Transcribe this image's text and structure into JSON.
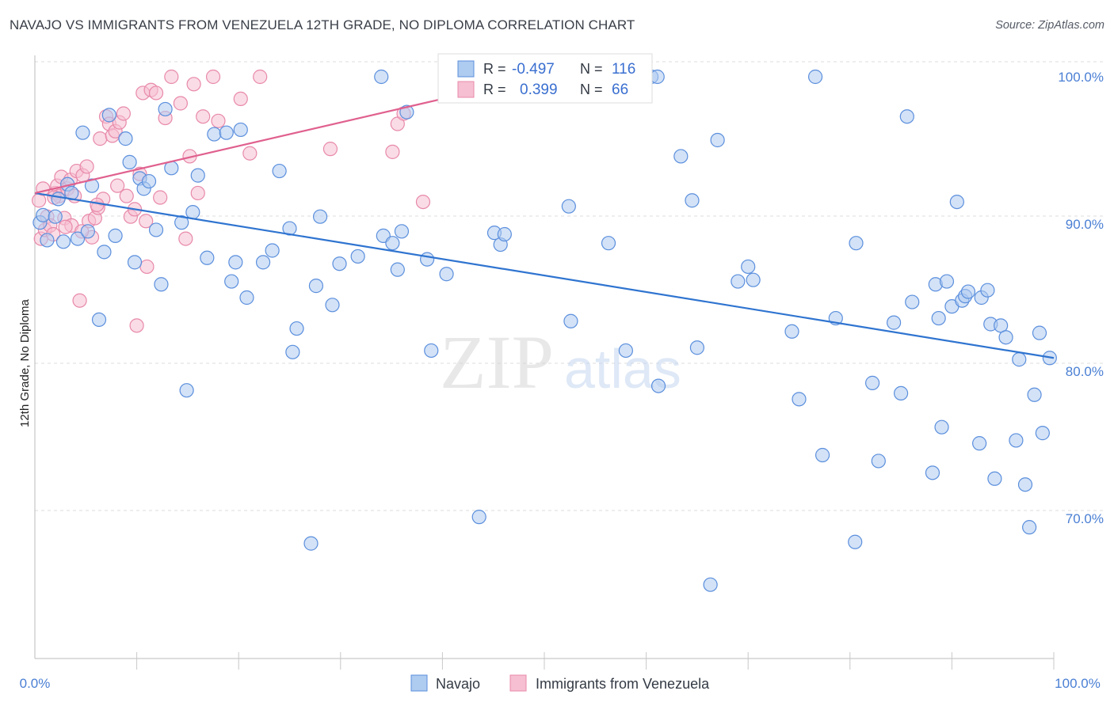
{
  "title": "NAVAJO VS IMMIGRANTS FROM VENEZUELA 12TH GRADE, NO DIPLOMA CORRELATION CHART",
  "source": "Source: ZipAtlas.com",
  "watermark": {
    "zip": "ZIP",
    "atlas": "atlas"
  },
  "colors": {
    "blue_fill": "#aecbf0",
    "blue_stroke": "#5b8fdd",
    "blue_line": "#2f74d0",
    "pink_fill": "#f6bfd2",
    "pink_stroke": "#e889aa",
    "pink_line": "#e0608e",
    "tick_text": "#4a7fd4",
    "grid": "#dcdcdc"
  },
  "legend": {
    "r_label": "R =",
    "n_label": "N =",
    "rows": [
      {
        "series": "Navajo",
        "r": "-0.497",
        "n": "116"
      },
      {
        "series": "Immigrants from Venezuela",
        "r": "0.399",
        "n": "66"
      }
    ]
  },
  "chart_data": {
    "type": "scatter",
    "title": "NAVAJO VS IMMIGRANTS FROM VENEZUELA 12TH GRADE, NO DIPLOMA CORRELATION CHART",
    "xlabel": "",
    "ylabel": "12th Grade, No Diploma",
    "x_ticks": [
      "0.0%",
      "100.0%"
    ],
    "y_ticks": [
      "100.0%",
      "90.0%",
      "80.0%",
      "70.0%"
    ],
    "y_tick_values": [
      100,
      90,
      80,
      70
    ],
    "xlim": [
      0,
      100
    ],
    "ylim": [
      59,
      101
    ],
    "grid": true,
    "legend_position": "top-center",
    "series": [
      {
        "name": "Navajo",
        "trend": [
          [
            0,
            92.1
          ],
          [
            100,
            80.9
          ]
        ],
        "points": [
          [
            0.5,
            90.1
          ],
          [
            0.8,
            90.6
          ],
          [
            1.2,
            88.9
          ],
          [
            2.0,
            90.5
          ],
          [
            2.3,
            91.7
          ],
          [
            2.8,
            88.8
          ],
          [
            3.2,
            92.7
          ],
          [
            3.6,
            92.1
          ],
          [
            4.2,
            89.0
          ],
          [
            4.7,
            96.2
          ],
          [
            5.2,
            89.5
          ],
          [
            5.6,
            92.6
          ],
          [
            6.3,
            83.5
          ],
          [
            6.8,
            88.1
          ],
          [
            7.3,
            97.4
          ],
          [
            7.9,
            89.2
          ],
          [
            8.9,
            95.8
          ],
          [
            9.3,
            94.2
          ],
          [
            9.8,
            87.4
          ],
          [
            10.3,
            93.1
          ],
          [
            10.7,
            92.4
          ],
          [
            11.2,
            92.9
          ],
          [
            11.9,
            89.6
          ],
          [
            12.4,
            85.9
          ],
          [
            12.8,
            97.8
          ],
          [
            13.4,
            93.8
          ],
          [
            14.4,
            90.1
          ],
          [
            14.9,
            78.7
          ],
          [
            15.5,
            90.8
          ],
          [
            16.0,
            93.3
          ],
          [
            16.9,
            87.7
          ],
          [
            17.6,
            96.1
          ],
          [
            18.8,
            96.2
          ],
          [
            19.3,
            86.1
          ],
          [
            19.7,
            87.4
          ],
          [
            20.2,
            96.4
          ],
          [
            20.8,
            85.0
          ],
          [
            22.4,
            87.4
          ],
          [
            23.3,
            88.2
          ],
          [
            24.0,
            93.6
          ],
          [
            25.0,
            89.7
          ],
          [
            25.3,
            81.3
          ],
          [
            25.7,
            82.9
          ],
          [
            27.1,
            68.3
          ],
          [
            27.6,
            85.8
          ],
          [
            28.0,
            90.5
          ],
          [
            29.2,
            84.5
          ],
          [
            29.9,
            87.3
          ],
          [
            31.7,
            87.8
          ],
          [
            34.0,
            100.0
          ],
          [
            34.2,
            89.2
          ],
          [
            35.1,
            88.7
          ],
          [
            35.6,
            86.9
          ],
          [
            36.0,
            89.5
          ],
          [
            36.5,
            97.6
          ],
          [
            38.5,
            87.6
          ],
          [
            38.9,
            81.4
          ],
          [
            40.4,
            86.6
          ],
          [
            43.6,
            70.1
          ],
          [
            45.1,
            89.4
          ],
          [
            45.7,
            88.6
          ],
          [
            46.1,
            89.3
          ],
          [
            52.4,
            91.2
          ],
          [
            52.6,
            83.4
          ],
          [
            52.9,
            100.0
          ],
          [
            56.3,
            88.7
          ],
          [
            58.0,
            81.4
          ],
          [
            60.5,
            100.0
          ],
          [
            61.1,
            100.0
          ],
          [
            61.2,
            79.0
          ],
          [
            63.4,
            94.6
          ],
          [
            64.5,
            91.6
          ],
          [
            65.0,
            81.6
          ],
          [
            66.3,
            65.5
          ],
          [
            67.0,
            95.7
          ],
          [
            69.0,
            86.1
          ],
          [
            70.0,
            87.1
          ],
          [
            70.5,
            86.2
          ],
          [
            74.3,
            82.7
          ],
          [
            75.0,
            78.1
          ],
          [
            76.6,
            100.0
          ],
          [
            77.3,
            74.3
          ],
          [
            78.6,
            83.6
          ],
          [
            80.5,
            68.4
          ],
          [
            80.6,
            88.7
          ],
          [
            82.2,
            79.2
          ],
          [
            82.8,
            73.9
          ],
          [
            84.3,
            83.3
          ],
          [
            85.0,
            78.5
          ],
          [
            85.6,
            97.3
          ],
          [
            86.1,
            84.7
          ],
          [
            88.1,
            73.1
          ],
          [
            88.4,
            85.9
          ],
          [
            88.7,
            83.6
          ],
          [
            89.0,
            76.2
          ],
          [
            89.5,
            86.1
          ],
          [
            90.0,
            84.4
          ],
          [
            90.5,
            91.5
          ],
          [
            91.0,
            84.8
          ],
          [
            91.3,
            85.1
          ],
          [
            91.6,
            85.4
          ],
          [
            92.7,
            75.1
          ],
          [
            92.9,
            85.0
          ],
          [
            93.5,
            85.5
          ],
          [
            93.8,
            83.2
          ],
          [
            94.2,
            72.7
          ],
          [
            94.8,
            83.1
          ],
          [
            95.3,
            82.3
          ],
          [
            96.3,
            75.3
          ],
          [
            96.6,
            80.8
          ],
          [
            97.2,
            72.3
          ],
          [
            97.6,
            69.4
          ],
          [
            98.1,
            78.4
          ],
          [
            98.6,
            82.6
          ],
          [
            98.9,
            75.8
          ],
          [
            99.6,
            80.9
          ]
        ]
      },
      {
        "name": "Immigrants from Venezuela",
        "trend": [
          [
            0,
            92.1
          ],
          [
            40,
            98.5
          ]
        ],
        "points": [
          [
            0.4,
            91.6
          ],
          [
            0.6,
            89.0
          ],
          [
            0.8,
            92.4
          ],
          [
            1.0,
            89.6
          ],
          [
            1.2,
            90.5
          ],
          [
            1.5,
            89.9
          ],
          [
            1.8,
            89.3
          ],
          [
            2.0,
            92.1
          ],
          [
            2.2,
            92.6
          ],
          [
            2.4,
            91.9
          ],
          [
            2.6,
            93.2
          ],
          [
            2.9,
            90.4
          ],
          [
            3.2,
            92.4
          ],
          [
            3.5,
            93.0
          ],
          [
            3.6,
            89.9
          ],
          [
            3.9,
            91.9
          ],
          [
            4.1,
            93.6
          ],
          [
            4.4,
            84.8
          ],
          [
            4.7,
            93.3
          ],
          [
            5.1,
            93.9
          ],
          [
            5.3,
            90.2
          ],
          [
            5.6,
            89.1
          ],
          [
            5.9,
            90.4
          ],
          [
            6.2,
            91.1
          ],
          [
            6.4,
            95.8
          ],
          [
            6.7,
            91.7
          ],
          [
            7.0,
            97.3
          ],
          [
            7.3,
            96.8
          ],
          [
            7.6,
            96.0
          ],
          [
            7.9,
            96.3
          ],
          [
            8.3,
            96.9
          ],
          [
            8.7,
            97.5
          ],
          [
            9.0,
            91.9
          ],
          [
            9.4,
            90.5
          ],
          [
            9.8,
            91.0
          ],
          [
            10.0,
            83.1
          ],
          [
            10.3,
            93.4
          ],
          [
            10.6,
            98.9
          ],
          [
            11.0,
            87.1
          ],
          [
            11.4,
            99.1
          ],
          [
            11.9,
            98.9
          ],
          [
            12.3,
            91.8
          ],
          [
            12.8,
            97.2
          ],
          [
            13.4,
            100.0
          ],
          [
            14.3,
            98.2
          ],
          [
            14.8,
            89.0
          ],
          [
            15.2,
            94.6
          ],
          [
            15.6,
            99.5
          ],
          [
            16.0,
            92.1
          ],
          [
            16.5,
            97.3
          ],
          [
            17.5,
            100.0
          ],
          [
            18.0,
            97.0
          ],
          [
            20.2,
            98.5
          ],
          [
            21.1,
            94.8
          ],
          [
            22.1,
            100.0
          ],
          [
            29.0,
            95.1
          ],
          [
            35.1,
            94.9
          ],
          [
            35.6,
            96.8
          ],
          [
            36.2,
            97.5
          ],
          [
            38.1,
            91.5
          ],
          [
            1.9,
            91.8
          ],
          [
            3.0,
            89.8
          ],
          [
            4.6,
            89.5
          ],
          [
            6.1,
            91.3
          ],
          [
            8.1,
            92.6
          ],
          [
            10.9,
            90.2
          ]
        ]
      }
    ]
  },
  "series_labels": {
    "navajo": "Navajo",
    "venezuela": "Immigrants from Venezuela"
  }
}
